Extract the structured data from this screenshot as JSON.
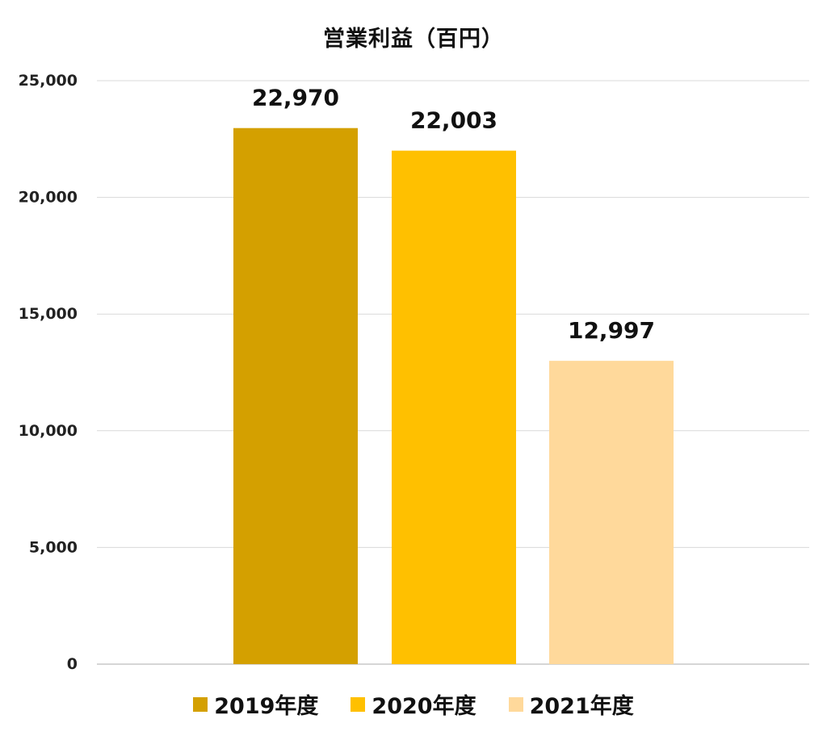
{
  "chart_data": {
    "type": "bar",
    "title": "営業利益（百円）",
    "xlabel": "",
    "ylabel": "",
    "ylim": [
      0,
      25000
    ],
    "y_ticks": [
      0,
      5000,
      10000,
      15000,
      20000,
      25000
    ],
    "y_tick_labels": [
      "0",
      "5,000",
      "10,000",
      "15,000",
      "20,000",
      "25,000"
    ],
    "grid": true,
    "legend_position": "bottom",
    "series": [
      {
        "name": "2019年度",
        "value": 22970,
        "label": "22,970",
        "color": "#D4A000"
      },
      {
        "name": "2020年度",
        "value": 22003,
        "label": "22,003",
        "color": "#FFC000"
      },
      {
        "name": "2021年度",
        "value": 12997,
        "label": "12,997",
        "color": "#FFD99B"
      }
    ]
  }
}
